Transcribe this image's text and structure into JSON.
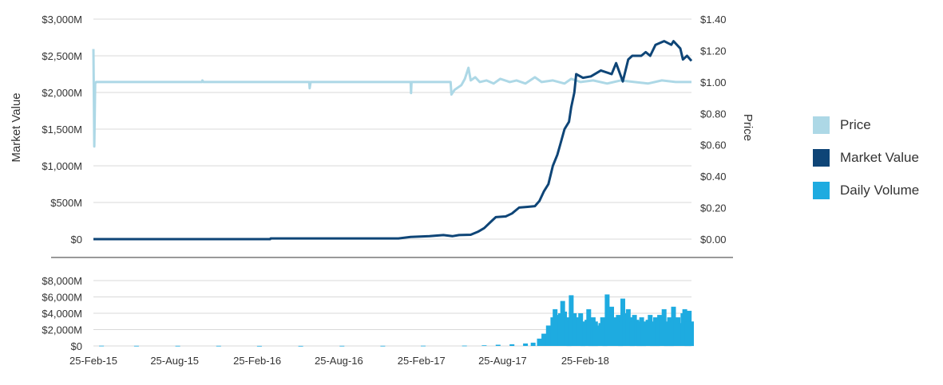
{
  "colors": {
    "price": "#add8e6",
    "market_value": "#0e4577",
    "volume": "#1eabe0",
    "grid": "#d9d9d9",
    "divider": "#333333"
  },
  "legend": {
    "items": [
      {
        "label": "Price",
        "color": "#add8e6"
      },
      {
        "label": "Market Value",
        "color": "#0e4577"
      },
      {
        "label": "Daily Volume",
        "color": "#1eabe0"
      }
    ]
  },
  "chart_data": [
    {
      "type": "line",
      "ylabel": "Market Value",
      "y2label": "Price",
      "legend_position": "right",
      "grid": true,
      "xlim": [
        "2015-02-25",
        "2018-10-20"
      ],
      "ylim": [
        0,
        3000
      ],
      "y2lim": [
        0,
        1.4
      ],
      "y_ticks": [
        "$0",
        "$500M",
        "$1,000M",
        "$1,500M",
        "$2,000M",
        "$2,500M",
        "$3,000M"
      ],
      "y2_ticks": [
        "$0.00",
        "$0.20",
        "$0.40",
        "$0.60",
        "$0.80",
        "$1.00",
        "$1.20",
        "$1.40"
      ],
      "series": [
        {
          "name": "Price",
          "axis": "right",
          "points": [
            [
              "2015-02-25",
              1.21
            ],
            [
              "2015-02-27",
              0.59
            ],
            [
              "2015-03-01",
              0.99
            ],
            [
              "2015-03-03",
              1.0
            ],
            [
              "2015-10-25",
              1.0
            ],
            [
              "2015-10-26",
              1.01
            ],
            [
              "2015-10-28",
              1.0
            ],
            [
              "2016-06-20",
              1.0
            ],
            [
              "2016-06-21",
              0.96
            ],
            [
              "2016-06-23",
              1.0
            ],
            [
              "2017-02-01",
              1.0
            ],
            [
              "2017-02-02",
              0.93
            ],
            [
              "2017-02-03",
              1.0
            ],
            [
              "2017-05-01",
              1.0
            ],
            [
              "2017-05-03",
              0.92
            ],
            [
              "2017-05-10",
              0.95
            ],
            [
              "2017-05-25",
              0.98
            ],
            [
              "2017-06-02",
              1.02
            ],
            [
              "2017-06-10",
              1.09
            ],
            [
              "2017-06-15",
              1.01
            ],
            [
              "2017-06-25",
              1.03
            ],
            [
              "2017-07-05",
              1.0
            ],
            [
              "2017-07-20",
              1.01
            ],
            [
              "2017-08-05",
              0.99
            ],
            [
              "2017-08-20",
              1.02
            ],
            [
              "2017-09-10",
              1.0
            ],
            [
              "2017-09-25",
              1.01
            ],
            [
              "2017-10-15",
              0.99
            ],
            [
              "2017-11-05",
              1.03
            ],
            [
              "2017-11-20",
              1.0
            ],
            [
              "2017-12-15",
              1.01
            ],
            [
              "2018-01-10",
              0.99
            ],
            [
              "2018-01-25",
              1.02
            ],
            [
              "2018-02-15",
              1.0
            ],
            [
              "2018-03-15",
              1.01
            ],
            [
              "2018-04-15",
              0.99
            ],
            [
              "2018-05-15",
              1.01
            ],
            [
              "2018-06-15",
              1.0
            ],
            [
              "2018-07-15",
              0.99
            ],
            [
              "2018-08-15",
              1.01
            ],
            [
              "2018-09-15",
              1.0
            ],
            [
              "2018-10-20",
              1.0
            ]
          ]
        },
        {
          "name": "Market Value",
          "axis": "left",
          "points": [
            [
              "2015-02-25",
              0
            ],
            [
              "2016-03-25",
              0
            ],
            [
              "2016-03-26",
              10
            ],
            [
              "2017-01-05",
              10
            ],
            [
              "2017-02-01",
              30
            ],
            [
              "2017-03-15",
              40
            ],
            [
              "2017-04-15",
              55
            ],
            [
              "2017-05-05",
              40
            ],
            [
              "2017-05-20",
              55
            ],
            [
              "2017-06-15",
              60
            ],
            [
              "2017-07-01",
              100
            ],
            [
              "2017-07-15",
              150
            ],
            [
              "2017-08-01",
              250
            ],
            [
              "2017-08-10",
              300
            ],
            [
              "2017-09-01",
              310
            ],
            [
              "2017-09-15",
              350
            ],
            [
              "2017-10-01",
              430
            ],
            [
              "2017-10-20",
              440
            ],
            [
              "2017-11-05",
              450
            ],
            [
              "2017-11-15",
              520
            ],
            [
              "2017-11-25",
              650
            ],
            [
              "2017-12-05",
              750
            ],
            [
              "2017-12-15",
              1000
            ],
            [
              "2017-12-25",
              1150
            ],
            [
              "2018-01-01",
              1300
            ],
            [
              "2018-01-10",
              1500
            ],
            [
              "2018-01-20",
              1600
            ],
            [
              "2018-01-25",
              1800
            ],
            [
              "2018-02-01",
              2000
            ],
            [
              "2018-02-05",
              2250
            ],
            [
              "2018-02-20",
              2200
            ],
            [
              "2018-03-10",
              2220
            ],
            [
              "2018-04-01",
              2300
            ],
            [
              "2018-04-25",
              2250
            ],
            [
              "2018-05-05",
              2400
            ],
            [
              "2018-05-20",
              2150
            ],
            [
              "2018-06-01",
              2450
            ],
            [
              "2018-06-10",
              2500
            ],
            [
              "2018-06-30",
              2500
            ],
            [
              "2018-07-10",
              2550
            ],
            [
              "2018-07-20",
              2500
            ],
            [
              "2018-08-01",
              2650
            ],
            [
              "2018-08-20",
              2700
            ],
            [
              "2018-09-05",
              2650
            ],
            [
              "2018-09-10",
              2700
            ],
            [
              "2018-09-25",
              2600
            ],
            [
              "2018-10-01",
              2450
            ],
            [
              "2018-10-10",
              2500
            ],
            [
              "2018-10-20",
              2430
            ]
          ]
        }
      ]
    },
    {
      "type": "bar",
      "grid": true,
      "xlim": [
        "2015-02-25",
        "2018-10-20"
      ],
      "ylim": [
        0,
        8000
      ],
      "y_ticks": [
        "$0",
        "$2,000M",
        "$4,000M",
        "$6,000M",
        "$8,000M"
      ],
      "x_ticks": [
        "25-Feb-15",
        "25-Aug-15",
        "25-Feb-16",
        "25-Aug-16",
        "25-Feb-17",
        "25-Aug-17",
        "25-Feb-18"
      ],
      "x_tick_dates": [
        "2015-02-25",
        "2015-08-25",
        "2016-02-25",
        "2016-08-25",
        "2017-02-25",
        "2017-08-25",
        "2018-02-25"
      ],
      "series": [
        {
          "name": "Daily Volume",
          "points": [
            [
              "2015-03-15",
              30
            ],
            [
              "2015-06-01",
              20
            ],
            [
              "2015-09-01",
              20
            ],
            [
              "2015-12-01",
              20
            ],
            [
              "2016-03-01",
              10
            ],
            [
              "2016-06-01",
              10
            ],
            [
              "2016-09-01",
              15
            ],
            [
              "2016-12-01",
              20
            ],
            [
              "2017-03-01",
              30
            ],
            [
              "2017-06-01",
              40
            ],
            [
              "2017-07-15",
              80
            ],
            [
              "2017-08-15",
              150
            ],
            [
              "2017-09-15",
              200
            ],
            [
              "2017-10-15",
              300
            ],
            [
              "2017-11-01",
              400
            ],
            [
              "2017-11-15",
              900
            ],
            [
              "2017-11-25",
              1500
            ],
            [
              "2017-12-05",
              2500
            ],
            [
              "2017-12-15",
              3500
            ],
            [
              "2017-12-20",
              4500
            ],
            [
              "2017-12-25",
              3800
            ],
            [
              "2018-01-01",
              4000
            ],
            [
              "2018-01-06",
              5500
            ],
            [
              "2018-01-10",
              4200
            ],
            [
              "2018-01-15",
              3500
            ],
            [
              "2018-01-20",
              3000
            ],
            [
              "2018-01-25",
              6200
            ],
            [
              "2018-02-01",
              4000
            ],
            [
              "2018-02-05",
              3500
            ],
            [
              "2018-02-10",
              3200
            ],
            [
              "2018-02-15",
              4000
            ],
            [
              "2018-02-20",
              3000
            ],
            [
              "2018-02-25",
              2800
            ],
            [
              "2018-03-01",
              3200
            ],
            [
              "2018-03-05",
              4500
            ],
            [
              "2018-03-10",
              3000
            ],
            [
              "2018-03-15",
              3500
            ],
            [
              "2018-03-20",
              3000
            ],
            [
              "2018-03-25",
              2500
            ],
            [
              "2018-04-01",
              2800
            ],
            [
              "2018-04-05",
              3500
            ],
            [
              "2018-04-10",
              3000
            ],
            [
              "2018-04-15",
              6300
            ],
            [
              "2018-04-20",
              4000
            ],
            [
              "2018-04-25",
              4800
            ],
            [
              "2018-05-01",
              3500
            ],
            [
              "2018-05-05",
              3200
            ],
            [
              "2018-05-10",
              3800
            ],
            [
              "2018-05-15",
              3000
            ],
            [
              "2018-05-20",
              5800
            ],
            [
              "2018-05-25",
              4000
            ],
            [
              "2018-06-01",
              4500
            ],
            [
              "2018-06-05",
              3500
            ],
            [
              "2018-06-10",
              3000
            ],
            [
              "2018-06-15",
              3800
            ],
            [
              "2018-06-20",
              3200
            ],
            [
              "2018-06-25",
              3000
            ],
            [
              "2018-07-01",
              3500
            ],
            [
              "2018-07-05",
              3000
            ],
            [
              "2018-07-10",
              2800
            ],
            [
              "2018-07-15",
              3200
            ],
            [
              "2018-07-20",
              3800
            ],
            [
              "2018-07-25",
              3000
            ],
            [
              "2018-08-01",
              3500
            ],
            [
              "2018-08-05",
              3000
            ],
            [
              "2018-08-10",
              3800
            ],
            [
              "2018-08-15",
              3200
            ],
            [
              "2018-08-20",
              4500
            ],
            [
              "2018-08-25",
              3000
            ],
            [
              "2018-09-01",
              3500
            ],
            [
              "2018-09-05",
              3000
            ],
            [
              "2018-09-10",
              4800
            ],
            [
              "2018-09-15",
              3200
            ],
            [
              "2018-09-20",
              3500
            ],
            [
              "2018-09-25",
              2800
            ],
            [
              "2018-10-01",
              4000
            ],
            [
              "2018-10-05",
              4500
            ],
            [
              "2018-10-10",
              3000
            ],
            [
              "2018-10-15",
              4300
            ],
            [
              "2018-10-20",
              3000
            ]
          ]
        }
      ]
    }
  ]
}
